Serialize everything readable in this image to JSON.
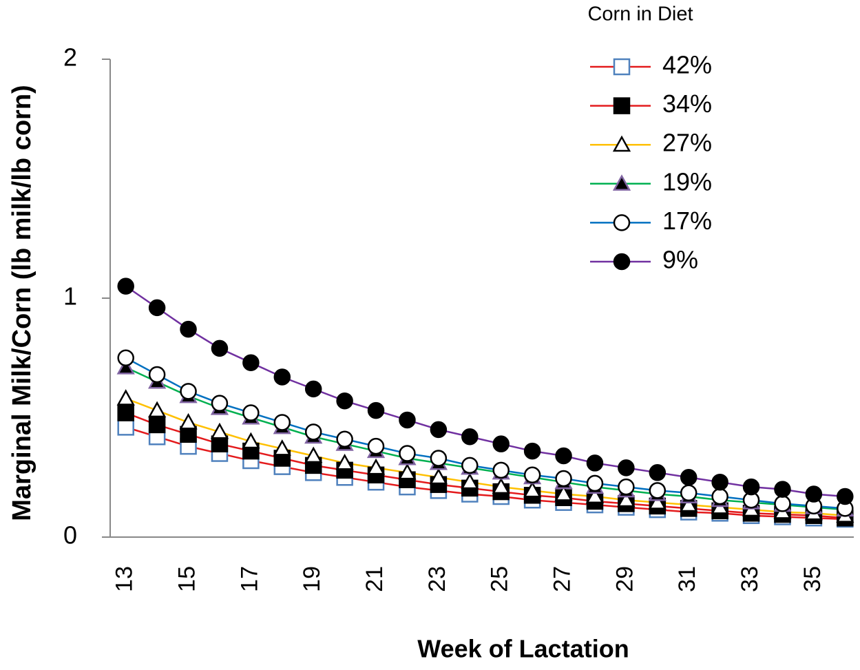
{
  "chart_data": {
    "type": "line",
    "x_label": "Week of Lactation",
    "y_label": "Marginal Milk/Corn (lb milk/lb corn)",
    "legend_title": "Corn in Diet",
    "legend": "top-right",
    "x": [
      13,
      14,
      15,
      16,
      17,
      18,
      19,
      20,
      21,
      22,
      23,
      24,
      25,
      26,
      27,
      28,
      29,
      30,
      31,
      32,
      33,
      34,
      35,
      36
    ],
    "xlim": [
      12.5,
      36.5
    ],
    "xticks": [
      13,
      15,
      17,
      19,
      21,
      23,
      25,
      27,
      29,
      31,
      33,
      35
    ],
    "ylim": [
      0,
      2
    ],
    "yticks": [
      0,
      1,
      2
    ],
    "grid": false,
    "series": [
      {
        "name": "42%",
        "color": "#e31a1c",
        "marker": "square",
        "marker_fill": "#ffffff",
        "marker_stroke": "#4f81bd",
        "values": [
          0.46,
          0.42,
          0.38,
          0.35,
          0.32,
          0.295,
          0.27,
          0.25,
          0.23,
          0.21,
          0.195,
          0.18,
          0.17,
          0.155,
          0.145,
          0.135,
          0.125,
          0.115,
          0.105,
          0.1,
          0.09,
          0.085,
          0.08,
          0.075
        ]
      },
      {
        "name": "34%",
        "color": "#e31a1c",
        "marker": "square",
        "marker_fill": "#000000",
        "marker_stroke": "#000000",
        "values": [
          0.52,
          0.47,
          0.43,
          0.39,
          0.36,
          0.33,
          0.3,
          0.28,
          0.26,
          0.24,
          0.22,
          0.205,
          0.19,
          0.175,
          0.165,
          0.15,
          0.14,
          0.13,
          0.12,
          0.11,
          0.1,
          0.095,
          0.09,
          0.08
        ]
      },
      {
        "name": "27%",
        "color": "#ffc000",
        "marker": "triangle",
        "marker_fill": "#ffffff",
        "marker_stroke": "#000000",
        "values": [
          0.58,
          0.53,
          0.48,
          0.44,
          0.4,
          0.37,
          0.34,
          0.31,
          0.29,
          0.27,
          0.25,
          0.23,
          0.21,
          0.195,
          0.18,
          0.17,
          0.155,
          0.145,
          0.135,
          0.125,
          0.115,
          0.105,
          0.1,
          0.09
        ]
      },
      {
        "name": "19%",
        "color": "#00b050",
        "marker": "triangle",
        "marker_fill": "#000000",
        "marker_stroke": "#8064a2",
        "values": [
          0.71,
          0.65,
          0.59,
          0.54,
          0.5,
          0.46,
          0.42,
          0.39,
          0.36,
          0.33,
          0.31,
          0.29,
          0.27,
          0.25,
          0.23,
          0.21,
          0.195,
          0.18,
          0.17,
          0.155,
          0.145,
          0.135,
          0.125,
          0.115
        ]
      },
      {
        "name": "17%",
        "color": "#0070c0",
        "marker": "circle",
        "marker_fill": "#ffffff",
        "marker_stroke": "#000000",
        "values": [
          0.75,
          0.68,
          0.61,
          0.56,
          0.52,
          0.48,
          0.44,
          0.41,
          0.38,
          0.35,
          0.33,
          0.3,
          0.28,
          0.26,
          0.245,
          0.225,
          0.21,
          0.195,
          0.185,
          0.17,
          0.155,
          0.14,
          0.13,
          0.12
        ]
      },
      {
        "name": "9%",
        "color": "#7030a0",
        "marker": "circle",
        "marker_fill": "#000000",
        "marker_stroke": "#000000",
        "values": [
          1.05,
          0.96,
          0.87,
          0.79,
          0.73,
          0.67,
          0.62,
          0.57,
          0.53,
          0.49,
          0.45,
          0.42,
          0.39,
          0.36,
          0.34,
          0.31,
          0.29,
          0.27,
          0.25,
          0.23,
          0.21,
          0.2,
          0.18,
          0.17
        ]
      }
    ]
  }
}
